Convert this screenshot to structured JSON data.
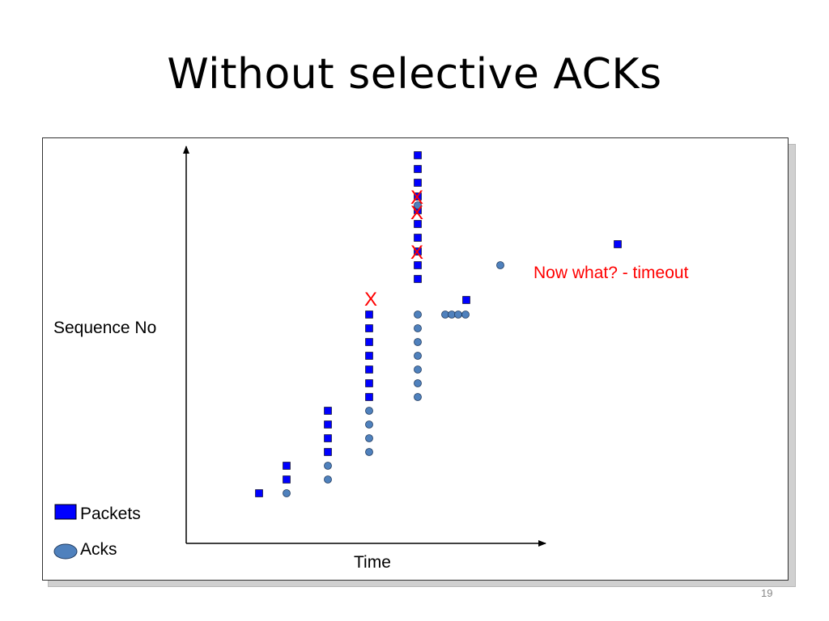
{
  "slide": {
    "title": "Without selective ACKs",
    "page_number": "19"
  },
  "diagram": {
    "y_axis_label": "Sequence No",
    "x_axis_label": "Time",
    "annotation": "Now what? - timeout",
    "legend": [
      {
        "label": "Packets",
        "shape": "square"
      },
      {
        "label": "Acks",
        "shape": "circle"
      }
    ],
    "colors": {
      "packet_fill": "#0000ff",
      "ack_fill": "#4f81bd",
      "loss_mark": "#ff0000",
      "annotation": "#ff0000",
      "axis": "#000000"
    },
    "loss_mark_glyph": "X"
  }
}
